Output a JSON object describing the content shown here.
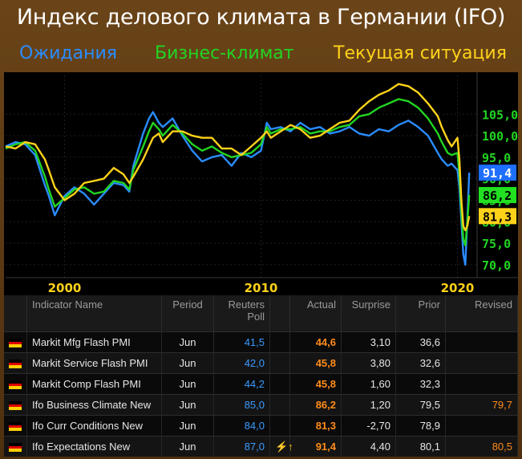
{
  "title": "Индекс делового климата в Германии (IFO)",
  "legend": [
    {
      "label": "Ожидания",
      "color": "#2a8cff"
    },
    {
      "label": "Бизнес-климат",
      "color": "#22d422"
    },
    {
      "label": "Текущая ситуация",
      "color": "#ffd21a"
    }
  ],
  "chart_data": {
    "type": "line",
    "xlim": [
      1997,
      2021
    ],
    "ylim": [
      67,
      114
    ],
    "x_ticks": [
      "2000",
      "2010",
      "2020"
    ],
    "y_ticks": [
      "105,0",
      "100,0",
      "95,0",
      "90,0",
      "85,0",
      "80,0",
      "75,0",
      "70,0"
    ],
    "series": [
      {
        "name": "Ожидания",
        "color": "#2a8cff",
        "points": [
          [
            1997.0,
            97.5
          ],
          [
            1997.5,
            98.5
          ],
          [
            1998.0,
            98.0
          ],
          [
            1998.5,
            95.5
          ],
          [
            1999.0,
            88.5
          ],
          [
            1999.2,
            86.0
          ],
          [
            1999.5,
            81.5
          ],
          [
            2000.0,
            86.0
          ],
          [
            2000.5,
            88.0
          ],
          [
            2001.0,
            86.5
          ],
          [
            2001.5,
            84.0
          ],
          [
            2002.0,
            86.5
          ],
          [
            2002.5,
            89.0
          ],
          [
            2003.0,
            88.5
          ],
          [
            2003.3,
            87.0
          ],
          [
            2003.5,
            93.0
          ],
          [
            2004.0,
            100.5
          ],
          [
            2004.3,
            104.0
          ],
          [
            2004.5,
            105.5
          ],
          [
            2004.8,
            103.0
          ],
          [
            2005.0,
            102.0
          ],
          [
            2005.5,
            104.0
          ],
          [
            2006.0,
            100.0
          ],
          [
            2006.5,
            96.5
          ],
          [
            2007.0,
            94.0
          ],
          [
            2007.5,
            95.0
          ],
          [
            2008.0,
            95.5
          ],
          [
            2008.5,
            93.0
          ],
          [
            2009.0,
            96.0
          ],
          [
            2009.5,
            95.0
          ],
          [
            2010.0,
            96.5
          ],
          [
            2010.3,
            103.0
          ],
          [
            2010.5,
            101.5
          ],
          [
            2011.0,
            102.0
          ],
          [
            2011.5,
            101.0
          ],
          [
            2012.0,
            103.0
          ],
          [
            2012.5,
            101.5
          ],
          [
            2013.0,
            102.0
          ],
          [
            2013.5,
            100.5
          ],
          [
            2014.0,
            101.0
          ],
          [
            2014.5,
            102.0
          ],
          [
            2015.0,
            100.5
          ],
          [
            2015.5,
            100.0
          ],
          [
            2016.0,
            101.5
          ],
          [
            2016.5,
            101.0
          ],
          [
            2017.0,
            102.5
          ],
          [
            2017.5,
            103.5
          ],
          [
            2018.0,
            102.0
          ],
          [
            2018.5,
            100.0
          ],
          [
            2019.0,
            96.0
          ],
          [
            2019.2,
            94.5
          ],
          [
            2019.5,
            93.0
          ],
          [
            2019.7,
            93.5
          ],
          [
            2020.0,
            92.0
          ],
          [
            2020.1,
            88.0
          ],
          [
            2020.2,
            80.0
          ],
          [
            2020.3,
            72.5
          ],
          [
            2020.4,
            70.0
          ],
          [
            2020.5,
            80.5
          ],
          [
            2020.6,
            91.4
          ]
        ]
      },
      {
        "name": "Бизнес-климат",
        "color": "#22d422",
        "points": [
          [
            1997.0,
            97.0
          ],
          [
            1997.5,
            98.0
          ],
          [
            1998.0,
            98.5
          ],
          [
            1998.5,
            96.5
          ],
          [
            1999.0,
            90.5
          ],
          [
            1999.2,
            87.5
          ],
          [
            1999.5,
            83.5
          ],
          [
            2000.0,
            85.5
          ],
          [
            2000.5,
            87.5
          ],
          [
            2001.0,
            88.0
          ],
          [
            2001.5,
            86.5
          ],
          [
            2002.0,
            87.0
          ],
          [
            2002.5,
            89.5
          ],
          [
            2003.0,
            89.0
          ],
          [
            2003.3,
            87.5
          ],
          [
            2003.5,
            92.0
          ],
          [
            2004.0,
            97.5
          ],
          [
            2004.3,
            101.0
          ],
          [
            2004.5,
            103.0
          ],
          [
            2004.8,
            101.5
          ],
          [
            2005.0,
            100.0
          ],
          [
            2005.5,
            102.5
          ],
          [
            2006.0,
            100.5
          ],
          [
            2006.5,
            98.0
          ],
          [
            2007.0,
            96.5
          ],
          [
            2007.5,
            97.5
          ],
          [
            2008.0,
            96.0
          ],
          [
            2008.5,
            95.0
          ],
          [
            2009.0,
            95.5
          ],
          [
            2009.5,
            96.0
          ],
          [
            2010.0,
            98.0
          ],
          [
            2010.3,
            102.0
          ],
          [
            2010.5,
            100.5
          ],
          [
            2011.0,
            101.5
          ],
          [
            2011.5,
            101.5
          ],
          [
            2012.0,
            102.0
          ],
          [
            2012.5,
            100.5
          ],
          [
            2013.0,
            101.0
          ],
          [
            2013.5,
            101.0
          ],
          [
            2014.0,
            102.0
          ],
          [
            2014.5,
            102.5
          ],
          [
            2015.0,
            104.5
          ],
          [
            2015.5,
            105.0
          ],
          [
            2016.0,
            106.5
          ],
          [
            2016.5,
            107.5
          ],
          [
            2017.0,
            108.5
          ],
          [
            2017.5,
            108.0
          ],
          [
            2018.0,
            106.5
          ],
          [
            2018.5,
            104.0
          ],
          [
            2019.0,
            100.5
          ],
          [
            2019.2,
            98.5
          ],
          [
            2019.5,
            96.0
          ],
          [
            2019.7,
            95.5
          ],
          [
            2020.0,
            96.0
          ],
          [
            2020.1,
            91.0
          ],
          [
            2020.2,
            82.0
          ],
          [
            2020.3,
            76.0
          ],
          [
            2020.4,
            74.5
          ],
          [
            2020.5,
            80.0
          ],
          [
            2020.6,
            86.2
          ]
        ]
      },
      {
        "name": "Текущая ситуация",
        "color": "#ffd21a",
        "points": [
          [
            1997.0,
            97.5
          ],
          [
            1997.5,
            97.0
          ],
          [
            1998.0,
            98.5
          ],
          [
            1998.5,
            98.0
          ],
          [
            1999.0,
            94.5
          ],
          [
            1999.2,
            92.0
          ],
          [
            1999.5,
            88.0
          ],
          [
            2000.0,
            85.0
          ],
          [
            2000.5,
            86.5
          ],
          [
            2001.0,
            89.0
          ],
          [
            2001.5,
            89.5
          ],
          [
            2002.0,
            90.0
          ],
          [
            2002.5,
            92.5
          ],
          [
            2003.0,
            91.0
          ],
          [
            2003.3,
            89.0
          ],
          [
            2003.5,
            90.5
          ],
          [
            2004.0,
            94.5
          ],
          [
            2004.3,
            97.5
          ],
          [
            2004.5,
            99.5
          ],
          [
            2004.8,
            100.5
          ],
          [
            2005.0,
            98.5
          ],
          [
            2005.5,
            101.0
          ],
          [
            2006.0,
            101.0
          ],
          [
            2006.5,
            100.0
          ],
          [
            2007.0,
            99.5
          ],
          [
            2007.5,
            99.5
          ],
          [
            2008.0,
            97.0
          ],
          [
            2008.5,
            97.0
          ],
          [
            2009.0,
            95.5
          ],
          [
            2009.5,
            97.5
          ],
          [
            2010.0,
            99.5
          ],
          [
            2010.3,
            101.0
          ],
          [
            2010.5,
            99.5
          ],
          [
            2011.0,
            101.0
          ],
          [
            2011.5,
            102.5
          ],
          [
            2012.0,
            101.5
          ],
          [
            2012.5,
            99.5
          ],
          [
            2013.0,
            100.0
          ],
          [
            2013.5,
            101.5
          ],
          [
            2014.0,
            103.0
          ],
          [
            2014.5,
            103.5
          ],
          [
            2015.0,
            106.0
          ],
          [
            2015.5,
            108.0
          ],
          [
            2016.0,
            109.5
          ],
          [
            2016.5,
            110.5
          ],
          [
            2017.0,
            112.0
          ],
          [
            2017.5,
            111.5
          ],
          [
            2018.0,
            110.0
          ],
          [
            2018.5,
            107.5
          ],
          [
            2019.0,
            104.5
          ],
          [
            2019.2,
            102.0
          ],
          [
            2019.5,
            99.0
          ],
          [
            2019.7,
            97.5
          ],
          [
            2020.0,
            99.5
          ],
          [
            2020.1,
            94.5
          ],
          [
            2020.2,
            85.0
          ],
          [
            2020.3,
            79.0
          ],
          [
            2020.4,
            78.0
          ],
          [
            2020.5,
            79.0
          ],
          [
            2020.6,
            81.3
          ]
        ]
      }
    ],
    "last_value_labels": [
      {
        "text": "91,4",
        "value": 91.4,
        "bg": "#1e6fff",
        "fg": "#ffffff"
      },
      {
        "text": "86,2",
        "value": 86.2,
        "bg": "#22e022",
        "fg": "#000000"
      },
      {
        "text": "81,3",
        "value": 81.3,
        "bg": "#ffd21a",
        "fg": "#000000"
      }
    ],
    "grid": true,
    "y_tick_color": "#21d421"
  },
  "table": {
    "headers": [
      "Indicator Name",
      "Period",
      "Reuters Poll",
      "",
      "Actual",
      "Surprise",
      "Prior",
      "Revised"
    ],
    "rows": [
      {
        "name": "Markit Mfg Flash PMI",
        "period": "Jun",
        "poll": "41,5",
        "icon": "",
        "actual": "44,6",
        "surprise": "3,10",
        "prior": "36,6",
        "revised": ""
      },
      {
        "name": "Markit Service Flash PMI",
        "period": "Jun",
        "poll": "42,0",
        "icon": "",
        "actual": "45,8",
        "surprise": "3,80",
        "prior": "32,6",
        "revised": ""
      },
      {
        "name": "Markit Comp Flash PMI",
        "period": "Jun",
        "poll": "44,2",
        "icon": "",
        "actual": "45,8",
        "surprise": "1,60",
        "prior": "32,3",
        "revised": ""
      },
      {
        "name": "Ifo Business Climate New",
        "period": "Jun",
        "poll": "85,0",
        "icon": "",
        "actual": "86,2",
        "surprise": "1,20",
        "prior": "79,5",
        "revised": "79,7"
      },
      {
        "name": "Ifo Curr Conditions New",
        "period": "Jun",
        "poll": "84,0",
        "icon": "",
        "actual": "81,3",
        "surprise": "-2,70",
        "prior": "78,9",
        "revised": ""
      },
      {
        "name": "Ifo Expectations New",
        "period": "Jun",
        "poll": "87,0",
        "icon": "⚡↑",
        "actual": "91,4",
        "surprise": "4,40",
        "prior": "80,1",
        "revised": "80,5"
      }
    ],
    "flag_colors": [
      "#000000",
      "#dd0000",
      "#ffce00"
    ]
  }
}
